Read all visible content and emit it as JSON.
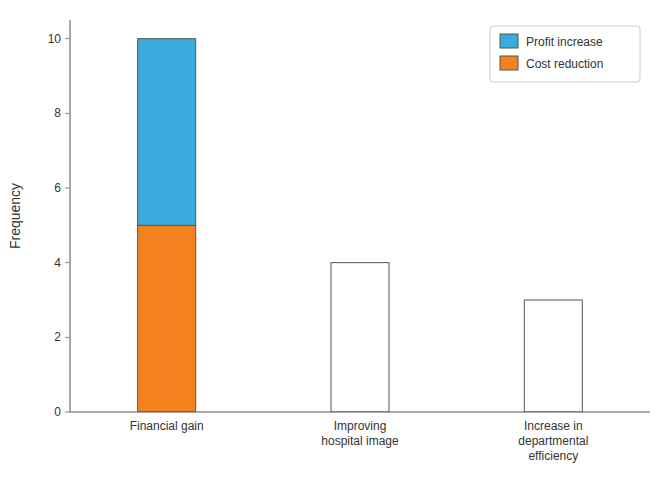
{
  "chart_data": {
    "type": "bar",
    "categories": [
      "Financial gain",
      "Improving\nhospital image",
      "Increase in\ndepartmental\nefficiency"
    ],
    "series": [
      {
        "name": "Cost reduction",
        "color": "#F4831F",
        "values": [
          5,
          0,
          0
        ]
      },
      {
        "name": "Profit increase",
        "color": "#3AABDC",
        "values": [
          5,
          0,
          0
        ]
      },
      {
        "color": "#FFFFFF",
        "values": [
          0,
          4,
          3
        ]
      }
    ],
    "stacked": true,
    "y_label": "Frequency",
    "ylim": [
      0,
      10.5
    ],
    "yticks": [
      0,
      2,
      4,
      6,
      8,
      10
    ],
    "grid": false,
    "legend": "upper right"
  }
}
